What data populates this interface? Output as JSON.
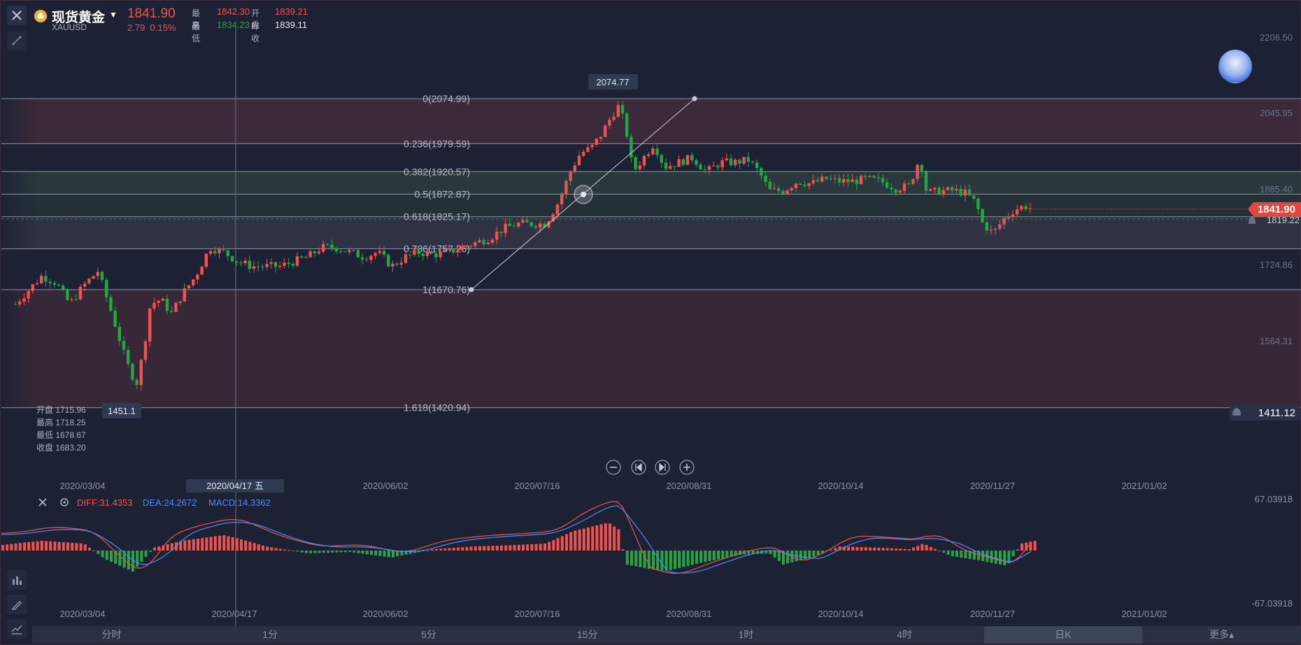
{
  "header": {
    "name": "现货黄金",
    "symbol": "XAUUSD",
    "price": "1841.90",
    "change": "2.79",
    "change_pct": "0.15%",
    "high_label": "最高",
    "high": "1842.30",
    "open_label": "开盘",
    "open": "1839.21",
    "low_label": "最低",
    "low": "1834.23",
    "prev_label": "昨收",
    "prev": "1839.11"
  },
  "colors": {
    "up": "#ef5350",
    "down": "#26a544",
    "bg": "#1c2233",
    "diff": "#ef5350",
    "dea": "#4c8cf5"
  },
  "fib_levels": [
    {
      "label": "0(2074.99)",
      "price": 2074.99
    },
    {
      "label": "0.236(1979.59)",
      "price": 1979.59
    },
    {
      "label": "0.382(1920.57)",
      "price": 1920.57
    },
    {
      "label": "0.5(1872.87)",
      "price": 1872.87
    },
    {
      "label": "0.618(1825.17)",
      "price": 1825.17
    },
    {
      "label": "0.786(1757.26)",
      "price": 1757.26
    },
    {
      "label": "1(1670.76)",
      "price": 1670.76
    },
    {
      "label": "1.618(1420.94)",
      "price": 1420.94
    }
  ],
  "price_axis": [
    "2206.50",
    "2045.95",
    "1885.40",
    "1724.86",
    "1564.31"
  ],
  "price_tag": "1841.90",
  "prev_tag": "1819.22",
  "alert_tag": "1411.12",
  "peak_tag": "2074.77",
  "trough_tag": "1451.1",
  "ohlc_box": [
    {
      "label": "开盘",
      "value": "1715.96"
    },
    {
      "label": "最高",
      "value": "1718.25"
    },
    {
      "label": "最低",
      "value": "1678.67"
    },
    {
      "label": "收盘",
      "value": "1683.20"
    }
  ],
  "date_axis": [
    "2020/03/04",
    "2020/06/02",
    "2020/07/16",
    "2020/08/31",
    "2020/10/14",
    "2020/11/27",
    "2021/01/02"
  ],
  "crosshair_date": "2020/04/17 五",
  "macd": {
    "diff_label": "DIFF:31.4353",
    "dea_label": "DEA:24.2672",
    "macd_label": "MACD:14.3362",
    "axis_top": "67.03918",
    "axis_bottom": "-67.03918"
  },
  "macd_date_axis": [
    "2020/03/04",
    "2020/04/17",
    "2020/06/02",
    "2020/07/16",
    "2020/08/31",
    "2020/10/14",
    "2020/11/27",
    "2021/01/02"
  ],
  "tabs": [
    "分时",
    "1分",
    "5分",
    "15分",
    "1时",
    "4时",
    "日K",
    "更多▴"
  ],
  "active_tab": "日K"
}
